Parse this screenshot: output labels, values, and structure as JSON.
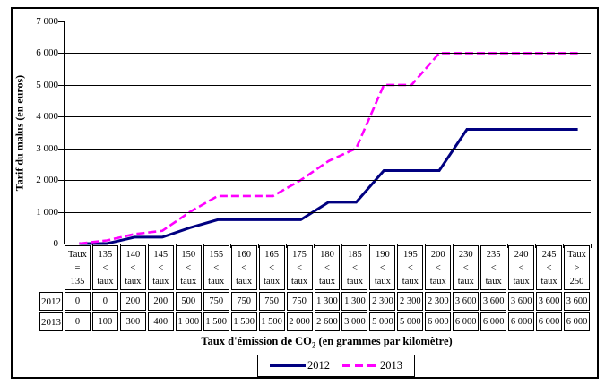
{
  "figure": {
    "y_axis_title": "Tarif du malus (en euros)",
    "x_axis_title_pre": "Taux d'émission de CO",
    "x_axis_title_sub": "2",
    "x_axis_title_post": " (en grammes par kilomètre)"
  },
  "chart_data": {
    "type": "line",
    "title": "",
    "ylabel": "Tarif du malus (en euros)",
    "xlabel": "Taux d'émission de CO2 (en grammes par kilomètre)",
    "ylim": [
      0,
      7000
    ],
    "ytick_step": 1000,
    "ytick_labels": [
      "0",
      "1 000",
      "2 000",
      "3 000",
      "4 000",
      "5 000",
      "6 000",
      "7 000"
    ],
    "grid": "horizontal",
    "legend_position": "bottom",
    "categories": [
      "Taux = 135",
      "135 < taux",
      "140 < taux",
      "145 < taux",
      "150 < taux",
      "155 < taux",
      "160 < taux",
      "165 < taux",
      "175 < taux",
      "180 < taux",
      "185 < taux",
      "190 < taux",
      "195 < taux",
      "200 < taux",
      "230 < taux",
      "235 < taux",
      "240 < taux",
      "245 < taux",
      "Taux > 250"
    ],
    "category_lines": [
      [
        "Taux",
        "=",
        "135"
      ],
      [
        "135",
        "<",
        "taux"
      ],
      [
        "140",
        "<",
        "taux"
      ],
      [
        "145",
        "<",
        "taux"
      ],
      [
        "150",
        "<",
        "taux"
      ],
      [
        "155",
        "<",
        "taux"
      ],
      [
        "160",
        "<",
        "taux"
      ],
      [
        "165",
        "<",
        "taux"
      ],
      [
        "175",
        "<",
        "taux"
      ],
      [
        "180",
        "<",
        "taux"
      ],
      [
        "185",
        "<",
        "taux"
      ],
      [
        "190",
        "<",
        "taux"
      ],
      [
        "195",
        "<",
        "taux"
      ],
      [
        "200",
        "<",
        "taux"
      ],
      [
        "230",
        "<",
        "taux"
      ],
      [
        "235",
        "<",
        "taux"
      ],
      [
        "240",
        "<",
        "taux"
      ],
      [
        "245",
        "<",
        "taux"
      ],
      [
        "Taux",
        ">",
        "250"
      ]
    ],
    "series": [
      {
        "name": "2012",
        "color": "#000080",
        "style": "solid",
        "values": [
          0,
          0,
          200,
          200,
          500,
          750,
          750,
          750,
          750,
          1300,
          1300,
          2300,
          2300,
          2300,
          3600,
          3600,
          3600,
          3600,
          3600
        ]
      },
      {
        "name": "2013",
        "color": "#FF00FF",
        "style": "dashed",
        "values": [
          0,
          100,
          300,
          400,
          1000,
          1500,
          1500,
          1500,
          2000,
          2600,
          3000,
          5000,
          5000,
          6000,
          6000,
          6000,
          6000,
          6000,
          6000
        ]
      }
    ]
  }
}
